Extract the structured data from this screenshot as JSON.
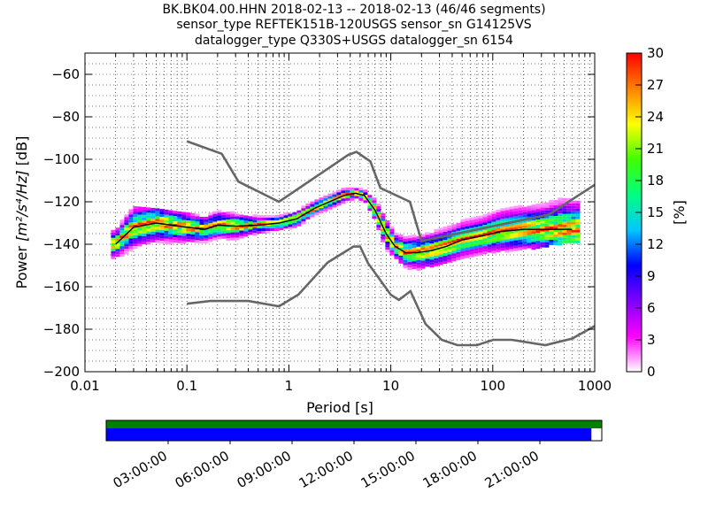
{
  "titles": {
    "line1": "BK.BK04.00.HHN   2018-02-13 -- 2018-02-13  (46/46 segments)",
    "line2": "sensor_type REFTEK151B-120USGS sensor_sn G14125VS",
    "line3": "datalogger_type Q330S+USGS datalogger_sn 6154"
  },
  "chart_data": {
    "type": "heatmap",
    "xlabel": "Period [s]",
    "ylabel_prefix": "Power ",
    "ylabel_units": "[m²/s⁴/Hz]",
    "ylabel_suffix": " [dB]",
    "x_scale": "log",
    "xlim": [
      0.01,
      1000
    ],
    "ylim": [
      -200,
      -50
    ],
    "x_ticks": [
      0.01,
      0.1,
      1,
      10,
      100,
      1000
    ],
    "x_tick_labels": [
      "0.01",
      "0.1",
      "1",
      "10",
      "100",
      "1000"
    ],
    "y_ticks": [
      -200,
      -180,
      -160,
      -140,
      -120,
      -100,
      -80,
      -60
    ],
    "y_tick_labels": [
      "−200",
      "−180",
      "−160",
      "−140",
      "−120",
      "−100",
      "−80",
      "−60"
    ],
    "grid": true,
    "colorbar": {
      "label": "[%]",
      "range": [
        0,
        30
      ],
      "ticks": [
        0,
        3,
        6,
        9,
        12,
        15,
        18,
        21,
        24,
        27,
        30
      ],
      "tick_labels": [
        "0",
        "3",
        "6",
        "9",
        "12",
        "15",
        "18",
        "21",
        "24",
        "27",
        "30"
      ],
      "colors": [
        "#ffffff",
        "#ff00ff",
        "#7f00ff",
        "#0000ff",
        "#00c8ff",
        "#00ff80",
        "#40ff00",
        "#ffff00",
        "#ff8000",
        "#ff0000"
      ]
    },
    "nlnm": {
      "name": "NLNM",
      "x": [
        0.1,
        0.17,
        0.4,
        0.8,
        1.24,
        2.4,
        4.3,
        5.0,
        6.0,
        10,
        12,
        15.6,
        21.9,
        31.6,
        45,
        70,
        101,
        154,
        328,
        600,
        1000
      ],
      "y": [
        -168.0,
        -166.7,
        -166.7,
        -169.2,
        -163.7,
        -148.6,
        -141.1,
        -141.1,
        -149.0,
        -163.8,
        -166.2,
        -162.1,
        -177.5,
        -185.0,
        -187.5,
        -187.5,
        -185.0,
        -185.0,
        -187.5,
        -184.4,
        -178.5
      ]
    },
    "nhnm": {
      "name": "NHNM",
      "x": [
        0.1,
        0.22,
        0.32,
        0.8,
        3.8,
        4.6,
        6.3,
        7.9,
        15.4,
        20,
        354.8,
        1000
      ],
      "y": [
        -91.5,
        -97.4,
        -110.5,
        -120.0,
        -98.0,
        -96.5,
        -101.0,
        -113.5,
        -120.0,
        -138.5,
        -126.0,
        -112.0
      ]
    },
    "mean_curve": {
      "x": [
        0.02,
        0.03,
        0.05,
        0.1,
        0.15,
        0.2,
        0.3,
        0.5,
        0.8,
        1.2,
        1.8,
        2.5,
        3.5,
        4.5,
        5.5,
        7,
        9,
        11,
        14,
        18,
        25,
        35,
        50,
        80,
        120,
        200,
        300,
        600
      ],
      "y": [
        -140,
        -132,
        -130,
        -132,
        -133,
        -131,
        -131.5,
        -131,
        -130,
        -128,
        -123,
        -120,
        -117,
        -116,
        -117,
        -124,
        -135,
        -141,
        -144,
        -144,
        -143,
        -141,
        -138,
        -136,
        -134,
        -133,
        -133,
        -133
      ]
    },
    "psd_upper": {
      "x": [
        0.02,
        0.03,
        0.05,
        0.1,
        0.15,
        0.2,
        0.3,
        0.5,
        0.8,
        1.2,
        1.8,
        2.5,
        3.5,
        4.5,
        5.5,
        7,
        9,
        11,
        14,
        18,
        25,
        35,
        50,
        80,
        120,
        200,
        300,
        500
      ],
      "y": [
        -135,
        -125,
        -126,
        -128,
        -129,
        -127,
        -126,
        -128,
        -128,
        -125,
        -121,
        -118,
        -115,
        -115,
        -117,
        -120,
        -128,
        -136,
        -138,
        -137,
        -134,
        -132,
        -130,
        -128,
        -125,
        -123,
        -121,
        -115
      ]
    },
    "psd_lower": {
      "x": [
        0.02,
        0.03,
        0.05,
        0.1,
        0.15,
        0.2,
        0.3,
        0.5,
        0.8,
        1.2,
        1.8,
        2.5,
        3.5,
        4.5,
        5.5,
        7,
        9,
        11,
        14,
        18,
        25,
        35,
        50,
        80,
        120,
        200,
        300,
        600
      ],
      "y": [
        -145,
        -140,
        -140,
        -139,
        -138,
        -137,
        -135,
        -134,
        -133,
        -131,
        -126,
        -123,
        -120,
        -119,
        -121,
        -128,
        -139,
        -145,
        -149,
        -149,
        -147,
        -145,
        -143,
        -141,
        -140,
        -139,
        -138,
        -136
      ]
    }
  },
  "timeline": {
    "labels": [
      "03:00:00",
      "06:00:00",
      "09:00:00",
      "12:00:00",
      "15:00:00",
      "18:00:00",
      "21:00:00"
    ],
    "coverage_color": "#008000",
    "data_color": "#0000ff",
    "data_fraction": 0.979
  }
}
